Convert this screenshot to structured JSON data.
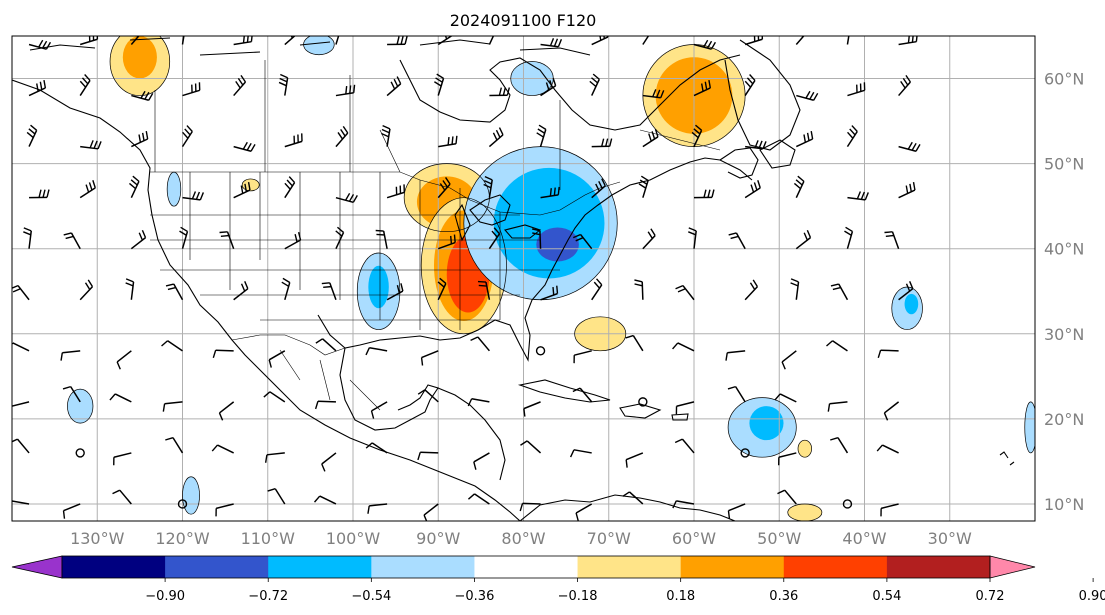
{
  "title": "2024091100 F120",
  "map": {
    "projection": "PlateCarree",
    "lon_range": [
      -140,
      -20
    ],
    "lat_range": [
      8,
      65
    ],
    "gridlines": true,
    "lon_labels": [
      {
        "lon": -130,
        "text": "130°W"
      },
      {
        "lon": -120,
        "text": "120°W"
      },
      {
        "lon": -110,
        "text": "110°W"
      },
      {
        "lon": -100,
        "text": "100°W"
      },
      {
        "lon": -90,
        "text": "90°W"
      },
      {
        "lon": -80,
        "text": "80°W"
      },
      {
        "lon": -70,
        "text": "70°W"
      },
      {
        "lon": -60,
        "text": "60°W"
      },
      {
        "lon": -50,
        "text": "50°W"
      },
      {
        "lon": -40,
        "text": "40°W"
      },
      {
        "lon": -30,
        "text": "30°W"
      }
    ],
    "lat_labels": [
      {
        "lat": 60,
        "text": "60°N"
      },
      {
        "lat": 50,
        "text": "50°N"
      },
      {
        "lat": 40,
        "text": "40°N"
      },
      {
        "lat": 30,
        "text": "30°N"
      },
      {
        "lat": 20,
        "text": "20°N"
      },
      {
        "lat": 10,
        "text": "10°N"
      }
    ]
  },
  "colorbar": {
    "colors": [
      "#9933cc",
      "#000080",
      "#3355cc",
      "#00bbff",
      "#aaddff",
      "#ffffff",
      "#ffe488",
      "#ffa000",
      "#ff4000",
      "#b21f1f",
      "#ff88aa"
    ],
    "ticks": [
      "−0.90",
      "−0.72",
      "−0.54",
      "−0.36",
      "−0.18",
      "0.18",
      "0.36",
      "0.54",
      "0.72",
      "0.90"
    ],
    "extend": "both"
  },
  "shaded_regions": [
    {
      "level": "pos1",
      "center": [
        -125,
        62
      ],
      "radius": [
        3.5,
        4
      ]
    },
    {
      "level": "pos2",
      "center": [
        -125,
        62.5
      ],
      "radius": [
        2,
        2.5
      ]
    },
    {
      "level": "pos1",
      "center": [
        -89,
        46
      ],
      "radius": [
        5,
        4
      ]
    },
    {
      "level": "pos2",
      "center": [
        -89,
        45.5
      ],
      "radius": [
        3.5,
        3
      ]
    },
    {
      "level": "pos1",
      "center": [
        -87,
        38
      ],
      "radius": [
        5,
        8
      ]
    },
    {
      "level": "pos2",
      "center": [
        -87,
        38
      ],
      "radius": [
        3.5,
        6.5
      ]
    },
    {
      "level": "pos3",
      "center": [
        -86.5,
        37
      ],
      "radius": [
        2.5,
        4.5
      ]
    },
    {
      "level": "pos1",
      "center": [
        -60,
        58
      ],
      "radius": [
        6,
        6
      ]
    },
    {
      "level": "pos2",
      "center": [
        -60,
        58
      ],
      "radius": [
        4.5,
        4.5
      ]
    },
    {
      "level": "pos1",
      "center": [
        -71,
        30
      ],
      "radius": [
        3,
        2
      ]
    },
    {
      "level": "pos1",
      "center": [
        -47,
        9
      ],
      "radius": [
        2,
        1
      ]
    },
    {
      "level": "pos1",
      "center": [
        -112,
        47.5
      ],
      "radius": [
        1,
        0.7
      ]
    },
    {
      "level": "pos1",
      "center": [
        -47,
        16.5
      ],
      "radius": [
        0.8,
        1
      ]
    },
    {
      "level": "neg1",
      "center": [
        -78,
        43
      ],
      "radius": [
        9,
        9
      ]
    },
    {
      "level": "neg2",
      "center": [
        -77,
        43
      ],
      "radius": [
        6.5,
        6.5
      ]
    },
    {
      "level": "neg3",
      "center": [
        -76,
        40.5
      ],
      "radius": [
        2.5,
        2
      ]
    },
    {
      "level": "neg1",
      "center": [
        -97,
        35
      ],
      "radius": [
        2.5,
        4.5
      ]
    },
    {
      "level": "neg2",
      "center": [
        -97,
        35.5
      ],
      "radius": [
        1.2,
        2.5
      ]
    },
    {
      "level": "neg1",
      "center": [
        -79,
        60
      ],
      "radius": [
        2.5,
        2
      ]
    },
    {
      "level": "neg1",
      "center": [
        -52,
        19
      ],
      "radius": [
        4,
        3.5
      ]
    },
    {
      "level": "neg2",
      "center": [
        -51.5,
        19.5
      ],
      "radius": [
        2,
        2
      ]
    },
    {
      "level": "neg1",
      "center": [
        -35,
        33
      ],
      "radius": [
        1.8,
        2.5
      ]
    },
    {
      "level": "neg2",
      "center": [
        -34.5,
        33.5
      ],
      "radius": [
        0.8,
        1.2
      ]
    },
    {
      "level": "neg1",
      "center": [
        -132,
        21.5
      ],
      "radius": [
        1.5,
        2
      ]
    },
    {
      "level": "neg1",
      "center": [
        -119,
        11
      ],
      "radius": [
        1,
        2.2
      ]
    },
    {
      "level": "neg1",
      "center": [
        -121,
        47
      ],
      "radius": [
        0.8,
        2
      ]
    },
    {
      "level": "neg1",
      "center": [
        -104,
        64
      ],
      "radius": [
        1.8,
        1.2
      ]
    },
    {
      "level": "neg1",
      "center": [
        -20.5,
        19
      ],
      "radius": [
        0.7,
        3
      ]
    }
  ],
  "wind_barbs": {
    "lon_start": -138,
    "lon_step": 6,
    "lon_count": 18,
    "lat_start": 64,
    "lat_step": -6,
    "lat_count": 10
  }
}
